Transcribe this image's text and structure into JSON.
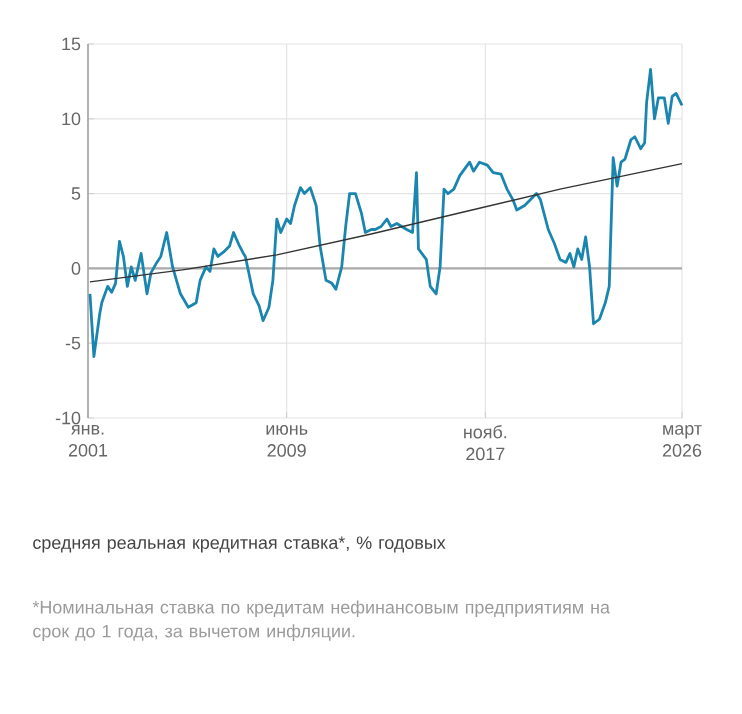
{
  "chart_data": {
    "type": "line",
    "xlim": [
      "2001-01",
      "2026-03"
    ],
    "xticks": [
      {
        "value": "2001-01",
        "label": "янв. 2001"
      },
      {
        "value": "2009-06",
        "label": "июнь 2009"
      },
      {
        "value": "2017-11",
        "label": "нояб. 2017"
      },
      {
        "value": "2026-03",
        "label": "март 2026"
      }
    ],
    "ylim": [
      -10,
      15
    ],
    "yticks": [
      -10,
      -5,
      0,
      5,
      10,
      15
    ],
    "grid": true,
    "ref_lines": [
      {
        "axis": "y",
        "value": 0,
        "color": "#aaaaaa"
      }
    ],
    "series": [
      {
        "color": "#1a86b0",
        "x": [
          "2001-02",
          "2001-04",
          "2001-07",
          "2001-08",
          "2001-11",
          "2002-01",
          "2002-03",
          "2002-05",
          "2002-07",
          "2002-09",
          "2002-11",
          "2003-01",
          "2003-04",
          "2003-07",
          "2003-09",
          "2003-12",
          "2004-02",
          "2004-05",
          "2004-08",
          "2004-12",
          "2005-04",
          "2005-08",
          "2005-10",
          "2006-01",
          "2006-03",
          "2006-05",
          "2006-07",
          "2006-10",
          "2007-01",
          "2007-03",
          "2007-06",
          "2007-08",
          "2007-09",
          "2008-01",
          "2008-04",
          "2008-06",
          "2008-09",
          "2008-11",
          "2009-01",
          "2009-03",
          "2009-06",
          "2009-08",
          "2009-10",
          "2010-01",
          "2010-03",
          "2010-06",
          "2010-09",
          "2010-11",
          "2011-02",
          "2011-05",
          "2011-07",
          "2011-10",
          "2011-12",
          "2012-02",
          "2012-05",
          "2012-08",
          "2012-10",
          "2013-01",
          "2013-03",
          "2013-06",
          "2013-09",
          "2013-11",
          "2014-02",
          "2014-07",
          "2014-10",
          "2014-12",
          "2015-01",
          "2015-05",
          "2015-07",
          "2015-10",
          "2015-12",
          "2016-02",
          "2016-04",
          "2016-07",
          "2016-10",
          "2017-03",
          "2017-05",
          "2017-08",
          "2017-12",
          "2018-03",
          "2018-07",
          "2018-10",
          "2019-01",
          "2019-03",
          "2019-07",
          "2019-10",
          "2020-01",
          "2020-03",
          "2020-07",
          "2020-10",
          "2021-01",
          "2021-04",
          "2021-06",
          "2021-08",
          "2021-10",
          "2021-12",
          "2022-02",
          "2022-04",
          "2022-06",
          "2022-09",
          "2022-12",
          "2023-02",
          "2023-04",
          "2023-06",
          "2023-08",
          "2023-10",
          "2024-01",
          "2024-03",
          "2024-06",
          "2024-08",
          "2024-09",
          "2024-11",
          "2025-01",
          "2025-03",
          "2025-06",
          "2025-08",
          "2025-10",
          "2025-12",
          "2026-03"
        ],
        "values": [
          -1.7,
          -5.9,
          -3.0,
          -2.3,
          -1.2,
          -1.6,
          -1.0,
          1.8,
          0.8,
          -1.2,
          0.1,
          -0.8,
          1.0,
          -1.7,
          -0.3,
          0.4,
          0.8,
          2.4,
          0.1,
          -1.7,
          -2.6,
          -2.3,
          -0.8,
          0.1,
          -0.2,
          1.3,
          0.8,
          1.1,
          1.5,
          2.4,
          1.5,
          1.0,
          0.8,
          -1.7,
          -2.5,
          -3.5,
          -2.6,
          -0.8,
          3.3,
          2.4,
          3.3,
          3.0,
          4.2,
          5.4,
          5.0,
          5.4,
          4.2,
          1.5,
          -0.8,
          -1.0,
          -1.4,
          0.1,
          2.8,
          5.0,
          5.0,
          3.7,
          2.4,
          2.6,
          2.6,
          2.8,
          3.3,
          2.8,
          3.0,
          2.6,
          2.4,
          6.4,
          1.3,
          0.6,
          -1.2,
          -1.7,
          0.1,
          5.3,
          5.0,
          5.3,
          6.2,
          7.1,
          6.5,
          7.1,
          6.9,
          6.4,
          6.3,
          5.3,
          4.6,
          3.9,
          4.2,
          4.6,
          5.0,
          4.6,
          2.6,
          1.7,
          0.6,
          0.4,
          1.0,
          0.1,
          1.3,
          0.6,
          2.1,
          0.1,
          -3.7,
          -3.4,
          -2.3,
          -1.2,
          7.4,
          5.5,
          7.1,
          7.3,
          8.6,
          8.8,
          8.0,
          8.4,
          11.1,
          13.3,
          10.0,
          11.4,
          11.4,
          9.7,
          11.5,
          11.7,
          10.9
        ]
      },
      {
        "color": "#333333",
        "x": [
          "2001-02",
          "2005-01",
          "2009-01",
          "2013-01",
          "2017-01",
          "2021-01",
          "2026-03"
        ],
        "values": [
          -0.9,
          -0.1,
          0.9,
          2.3,
          3.8,
          5.3,
          7.0
        ]
      }
    ],
    "annotations": [
      "средняя реальная кредитная ставка*, % годовых",
      "*Номинальная ставка по кредитам нефинансовым предприятиям на срок до 1 года, за вычетом инфляции."
    ]
  }
}
